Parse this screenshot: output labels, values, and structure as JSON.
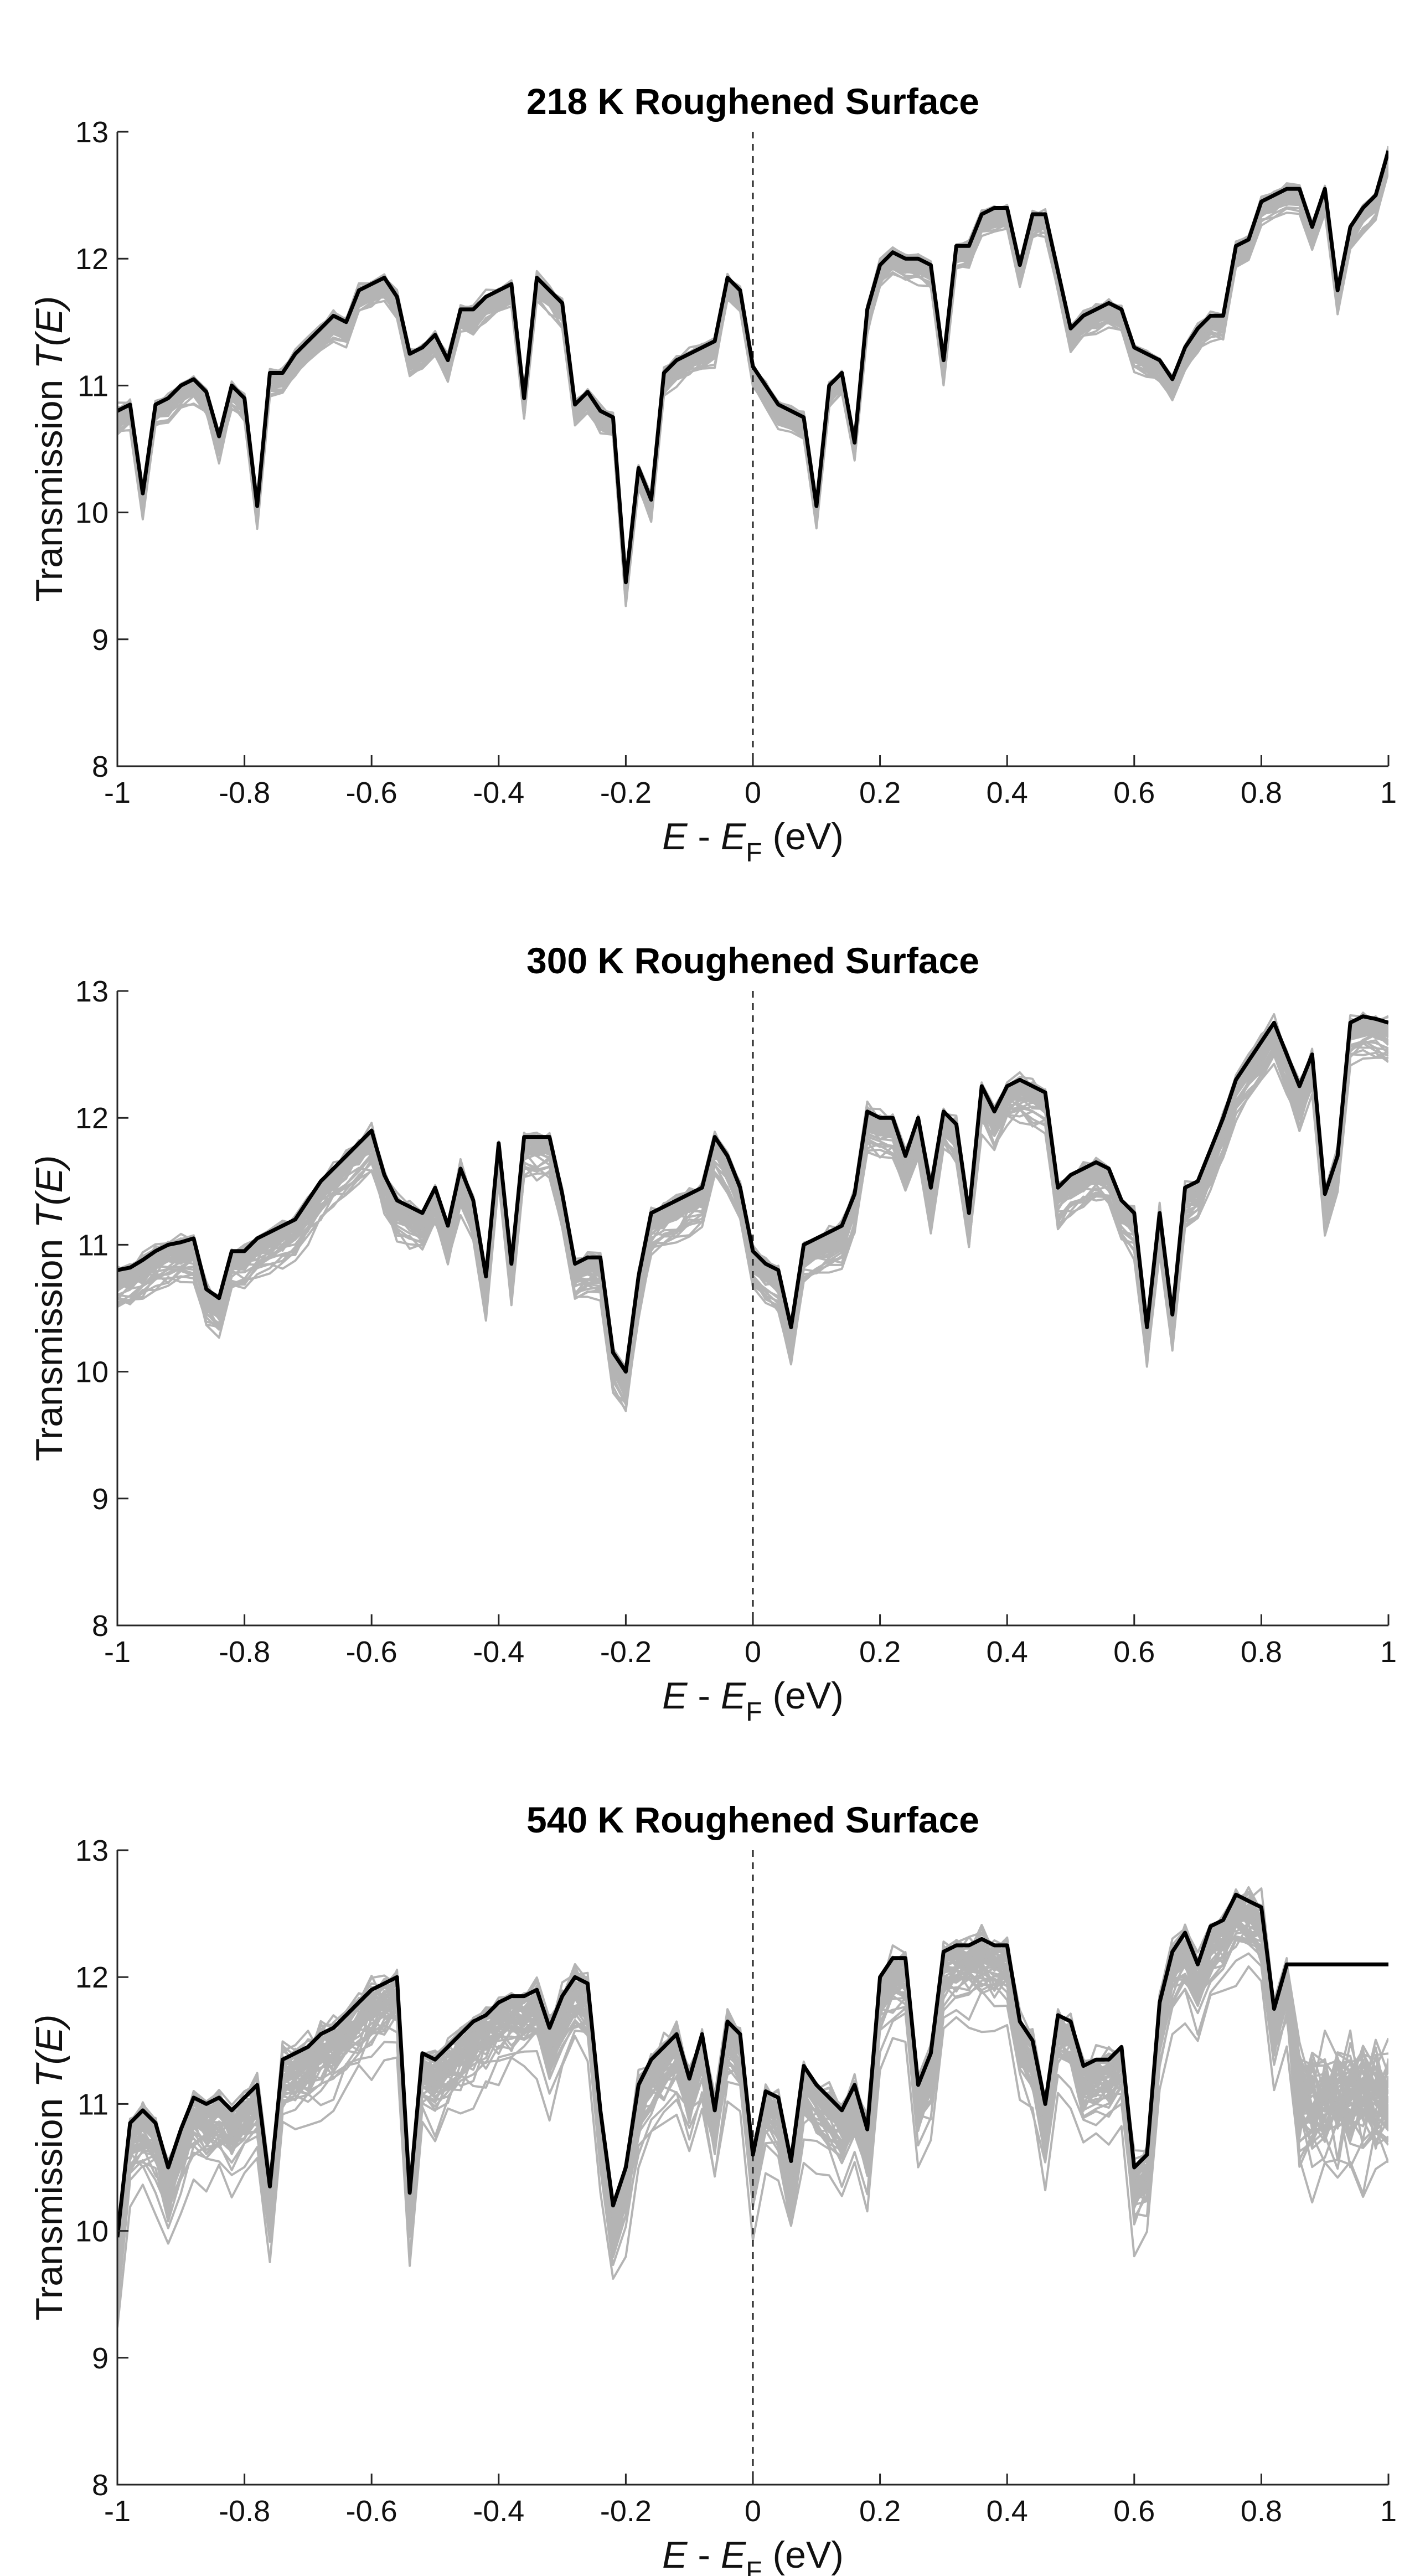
{
  "chart_data": [
    {
      "type": "line",
      "title": "218 K Roughened Surface",
      "xlabel": {
        "var": "E",
        "sep": " - ",
        "var2": "E",
        "sub": "F",
        "unit": " (eV)"
      },
      "ylabel": {
        "text": "Transmission ",
        "italic": "T(E)"
      },
      "xlim": [
        -1,
        1
      ],
      "ylim": [
        8,
        13
      ],
      "xticks": [
        "-1",
        "-0.8",
        "-0.6",
        "-0.4",
        "-0.2",
        "0",
        "0.2",
        "0.4",
        "0.6",
        "0.8",
        "1"
      ],
      "yticks": [
        "8",
        "9",
        "10",
        "11",
        "12",
        "13"
      ],
      "reference_line": {
        "x": 0,
        "style": "dashed"
      },
      "series": [
        {
          "name": "average",
          "color": "#000000",
          "x": [
            -1,
            -0.98,
            -0.96,
            -0.94,
            -0.92,
            -0.9,
            -0.88,
            -0.86,
            -0.84,
            -0.82,
            -0.8,
            -0.78,
            -0.76,
            -0.74,
            -0.72,
            -0.7,
            -0.68,
            -0.66,
            -0.64,
            -0.62,
            -0.6,
            -0.58,
            -0.56,
            -0.54,
            -0.52,
            -0.5,
            -0.48,
            -0.46,
            -0.44,
            -0.42,
            -0.4,
            -0.38,
            -0.36,
            -0.34,
            -0.32,
            -0.3,
            -0.28,
            -0.26,
            -0.24,
            -0.22,
            -0.2,
            -0.18,
            -0.16,
            -0.14,
            -0.12,
            -0.1,
            -0.08,
            -0.06,
            -0.04,
            -0.02,
            0,
            0.02,
            0.04,
            0.06,
            0.08,
            0.1,
            0.12,
            0.14,
            0.16,
            0.18,
            0.2,
            0.22,
            0.24,
            0.26,
            0.28,
            0.3,
            0.32,
            0.34,
            0.36,
            0.38,
            0.4,
            0.42,
            0.44,
            0.46,
            0.48,
            0.5,
            0.52,
            0.54,
            0.56,
            0.58,
            0.6,
            0.62,
            0.64,
            0.66,
            0.68,
            0.7,
            0.72,
            0.74,
            0.76,
            0.78,
            0.8,
            0.82,
            0.84,
            0.86,
            0.88,
            0.9,
            0.92,
            0.94,
            0.96,
            0.98,
            1
          ],
          "y": [
            10.8,
            10.85,
            10.15,
            10.85,
            10.9,
            11.0,
            11.05,
            10.95,
            10.6,
            11.0,
            10.9,
            10.05,
            11.1,
            11.1,
            11.25,
            11.35,
            11.45,
            11.55,
            11.5,
            11.75,
            11.8,
            11.85,
            11.7,
            11.25,
            11.3,
            11.4,
            11.2,
            11.6,
            11.6,
            11.7,
            11.75,
            11.8,
            10.9,
            11.85,
            11.75,
            11.65,
            10.85,
            10.95,
            10.8,
            10.75,
            9.45,
            10.35,
            10.1,
            11.1,
            11.2,
            11.25,
            11.3,
            11.35,
            11.85,
            11.75,
            11.15,
            11.0,
            10.85,
            10.8,
            10.75,
            10.05,
            11.0,
            11.1,
            10.55,
            11.6,
            11.95,
            12.05,
            12.0,
            12.0,
            11.95,
            11.2,
            12.1,
            12.1,
            12.35,
            12.4,
            12.4,
            11.95,
            12.35,
            12.35,
            11.9,
            11.45,
            11.55,
            11.6,
            11.65,
            11.6,
            11.3,
            11.25,
            11.2,
            11.05,
            11.3,
            11.45,
            11.55,
            11.55,
            12.1,
            12.15,
            12.45,
            12.5,
            12.55,
            12.55,
            12.25,
            12.55,
            11.75,
            12.25,
            12.4,
            12.5,
            12.85
          ]
        },
        {
          "name": "gray ensemble",
          "color": "#b4b4b4"
        }
      ]
    },
    {
      "type": "line",
      "title": "300 K Roughened Surface",
      "xlabel": {
        "var": "E",
        "sep": " - ",
        "var2": "E",
        "sub": "F",
        "unit": " (eV)"
      },
      "ylabel": {
        "text": "Transmission ",
        "italic": "T(E)"
      },
      "xlim": [
        -1,
        1
      ],
      "ylim": [
        8,
        13
      ],
      "xticks": [
        "-1",
        "-0.8",
        "-0.6",
        "-0.4",
        "-0.2",
        "0",
        "0.2",
        "0.4",
        "0.6",
        "0.8",
        "1"
      ],
      "yticks": [
        "8",
        "9",
        "10",
        "11",
        "12",
        "13"
      ],
      "reference_line": {
        "x": 0,
        "style": "dashed"
      },
      "series": [
        {
          "name": "average",
          "color": "#000000",
          "x": [
            -1,
            -0.98,
            -0.96,
            -0.94,
            -0.92,
            -0.9,
            -0.88,
            -0.86,
            -0.84,
            -0.82,
            -0.8,
            -0.78,
            -0.76,
            -0.74,
            -0.72,
            -0.7,
            -0.68,
            -0.66,
            -0.64,
            -0.62,
            -0.6,
            -0.58,
            -0.56,
            -0.54,
            -0.52,
            -0.5,
            -0.48,
            -0.46,
            -0.44,
            -0.42,
            -0.4,
            -0.38,
            -0.36,
            -0.34,
            -0.32,
            -0.3,
            -0.28,
            -0.26,
            -0.24,
            -0.22,
            -0.2,
            -0.18,
            -0.16,
            -0.14,
            -0.12,
            -0.1,
            -0.08,
            -0.06,
            -0.04,
            -0.02,
            0,
            0.02,
            0.04,
            0.06,
            0.08,
            0.1,
            0.12,
            0.14,
            0.16,
            0.18,
            0.2,
            0.22,
            0.24,
            0.26,
            0.28,
            0.3,
            0.32,
            0.34,
            0.36,
            0.38,
            0.4,
            0.42,
            0.44,
            0.46,
            0.48,
            0.5,
            0.52,
            0.54,
            0.56,
            0.58,
            0.6,
            0.62,
            0.64,
            0.66,
            0.68,
            0.7,
            0.72,
            0.74,
            0.76,
            0.78,
            0.8,
            0.82,
            0.84,
            0.86,
            0.88,
            0.9,
            0.92,
            0.94,
            0.96,
            0.98,
            1
          ],
          "y": [
            10.8,
            10.82,
            10.88,
            10.95,
            11.0,
            11.02,
            11.05,
            10.65,
            10.58,
            10.95,
            10.95,
            11.05,
            11.1,
            11.15,
            11.2,
            11.35,
            11.5,
            11.6,
            11.7,
            11.8,
            11.9,
            11.55,
            11.35,
            11.3,
            11.25,
            11.45,
            11.15,
            11.6,
            11.35,
            10.75,
            11.8,
            10.85,
            11.85,
            11.85,
            11.85,
            11.4,
            10.85,
            10.9,
            10.9,
            10.15,
            10.0,
            10.75,
            11.25,
            11.3,
            11.35,
            11.4,
            11.45,
            11.85,
            11.7,
            11.45,
            10.95,
            10.85,
            10.8,
            10.35,
            11.0,
            11.05,
            11.1,
            11.15,
            11.4,
            12.05,
            12.0,
            12.0,
            11.7,
            12.0,
            11.45,
            12.05,
            11.95,
            11.25,
            12.25,
            12.05,
            12.25,
            12.3,
            12.25,
            12.2,
            11.45,
            11.55,
            11.6,
            11.65,
            11.6,
            11.35,
            11.25,
            10.35,
            11.25,
            10.45,
            11.45,
            11.5,
            11.75,
            12.0,
            12.3,
            12.45,
            12.6,
            12.75,
            12.5,
            12.25,
            12.5,
            11.4,
            11.7,
            12.75,
            12.8,
            12.78,
            12.75
          ]
        },
        {
          "name": "gray ensemble",
          "color": "#b4b4b4"
        }
      ]
    },
    {
      "type": "line",
      "title": "540 K Roughened Surface",
      "xlabel": {
        "var": "E",
        "sep": " - ",
        "var2": "E",
        "sub": "F",
        "unit": " (eV)"
      },
      "ylabel": {
        "text": "Transmission ",
        "italic": "T(E)"
      },
      "xlim": [
        -1,
        1
      ],
      "ylim": [
        8,
        13
      ],
      "xticks": [
        "-1",
        "-0.8",
        "-0.6",
        "-0.4",
        "-0.2",
        "0",
        "0.2",
        "0.4",
        "0.6",
        "0.8",
        "1"
      ],
      "yticks": [
        "8",
        "9",
        "10",
        "11",
        "12",
        "13"
      ],
      "reference_line": {
        "x": 0,
        "style": "dashed"
      },
      "series": [
        {
          "name": "average",
          "color": "#000000",
          "x": [
            -1,
            -0.98,
            -0.96,
            -0.94,
            -0.92,
            -0.9,
            -0.88,
            -0.86,
            -0.84,
            -0.82,
            -0.8,
            -0.78,
            -0.76,
            -0.74,
            -0.72,
            -0.7,
            -0.68,
            -0.66,
            -0.64,
            -0.62,
            -0.6,
            -0.58,
            -0.56,
            -0.54,
            -0.52,
            -0.5,
            -0.48,
            -0.46,
            -0.44,
            -0.42,
            -0.4,
            -0.38,
            -0.36,
            -0.34,
            -0.32,
            -0.3,
            -0.28,
            -0.26,
            -0.24,
            -0.22,
            -0.2,
            -0.18,
            -0.16,
            -0.14,
            -0.12,
            -0.1,
            -0.08,
            -0.06,
            -0.04,
            -0.02,
            0,
            0.02,
            0.04,
            0.06,
            0.08,
            0.1,
            0.12,
            0.14,
            0.16,
            0.18,
            0.2,
            0.22,
            0.24,
            0.26,
            0.28,
            0.3,
            0.32,
            0.34,
            0.36,
            0.38,
            0.4,
            0.42,
            0.44,
            0.46,
            0.48,
            0.5,
            0.52,
            0.54,
            0.56,
            0.58,
            0.6,
            0.62,
            0.64,
            0.66,
            0.68,
            0.7,
            0.72,
            0.74,
            0.76,
            0.78,
            0.8,
            0.82,
            0.84,
            0.86,
            0.88,
            0.9,
            0.92,
            0.94,
            0.96,
            0.98,
            1
          ],
          "y": [
            9.95,
            10.85,
            10.95,
            10.85,
            10.5,
            10.8,
            11.05,
            11.0,
            11.05,
            10.95,
            11.05,
            11.15,
            10.35,
            11.35,
            11.4,
            11.45,
            11.55,
            11.6,
            11.7,
            11.8,
            11.9,
            11.95,
            12.0,
            10.3,
            11.4,
            11.35,
            11.45,
            11.55,
            11.65,
            11.7,
            11.8,
            11.85,
            11.85,
            11.9,
            11.6,
            11.85,
            12.0,
            11.95,
            10.95,
            10.2,
            10.5,
            11.15,
            11.35,
            11.45,
            11.55,
            11.2,
            11.55,
            10.95,
            11.65,
            11.55,
            10.6,
            11.1,
            11.05,
            10.55,
            11.3,
            11.15,
            11.05,
            10.95,
            11.15,
            10.8,
            12.0,
            12.15,
            12.15,
            11.15,
            11.4,
            12.2,
            12.25,
            12.25,
            12.3,
            12.25,
            12.25,
            11.65,
            11.5,
            11.0,
            11.7,
            11.65,
            11.3,
            11.35,
            11.35,
            11.45,
            10.5,
            10.6,
            11.8,
            12.2,
            12.35,
            12.1,
            12.4,
            12.45,
            12.65,
            12.6,
            12.55,
            11.75,
            12.1,
            12.1,
            12.1,
            12.1,
            12.1,
            12.1,
            12.1,
            12.1,
            12.1
          ]
        },
        {
          "name": "gray ensemble",
          "color": "#b4b4b4"
        }
      ]
    }
  ]
}
